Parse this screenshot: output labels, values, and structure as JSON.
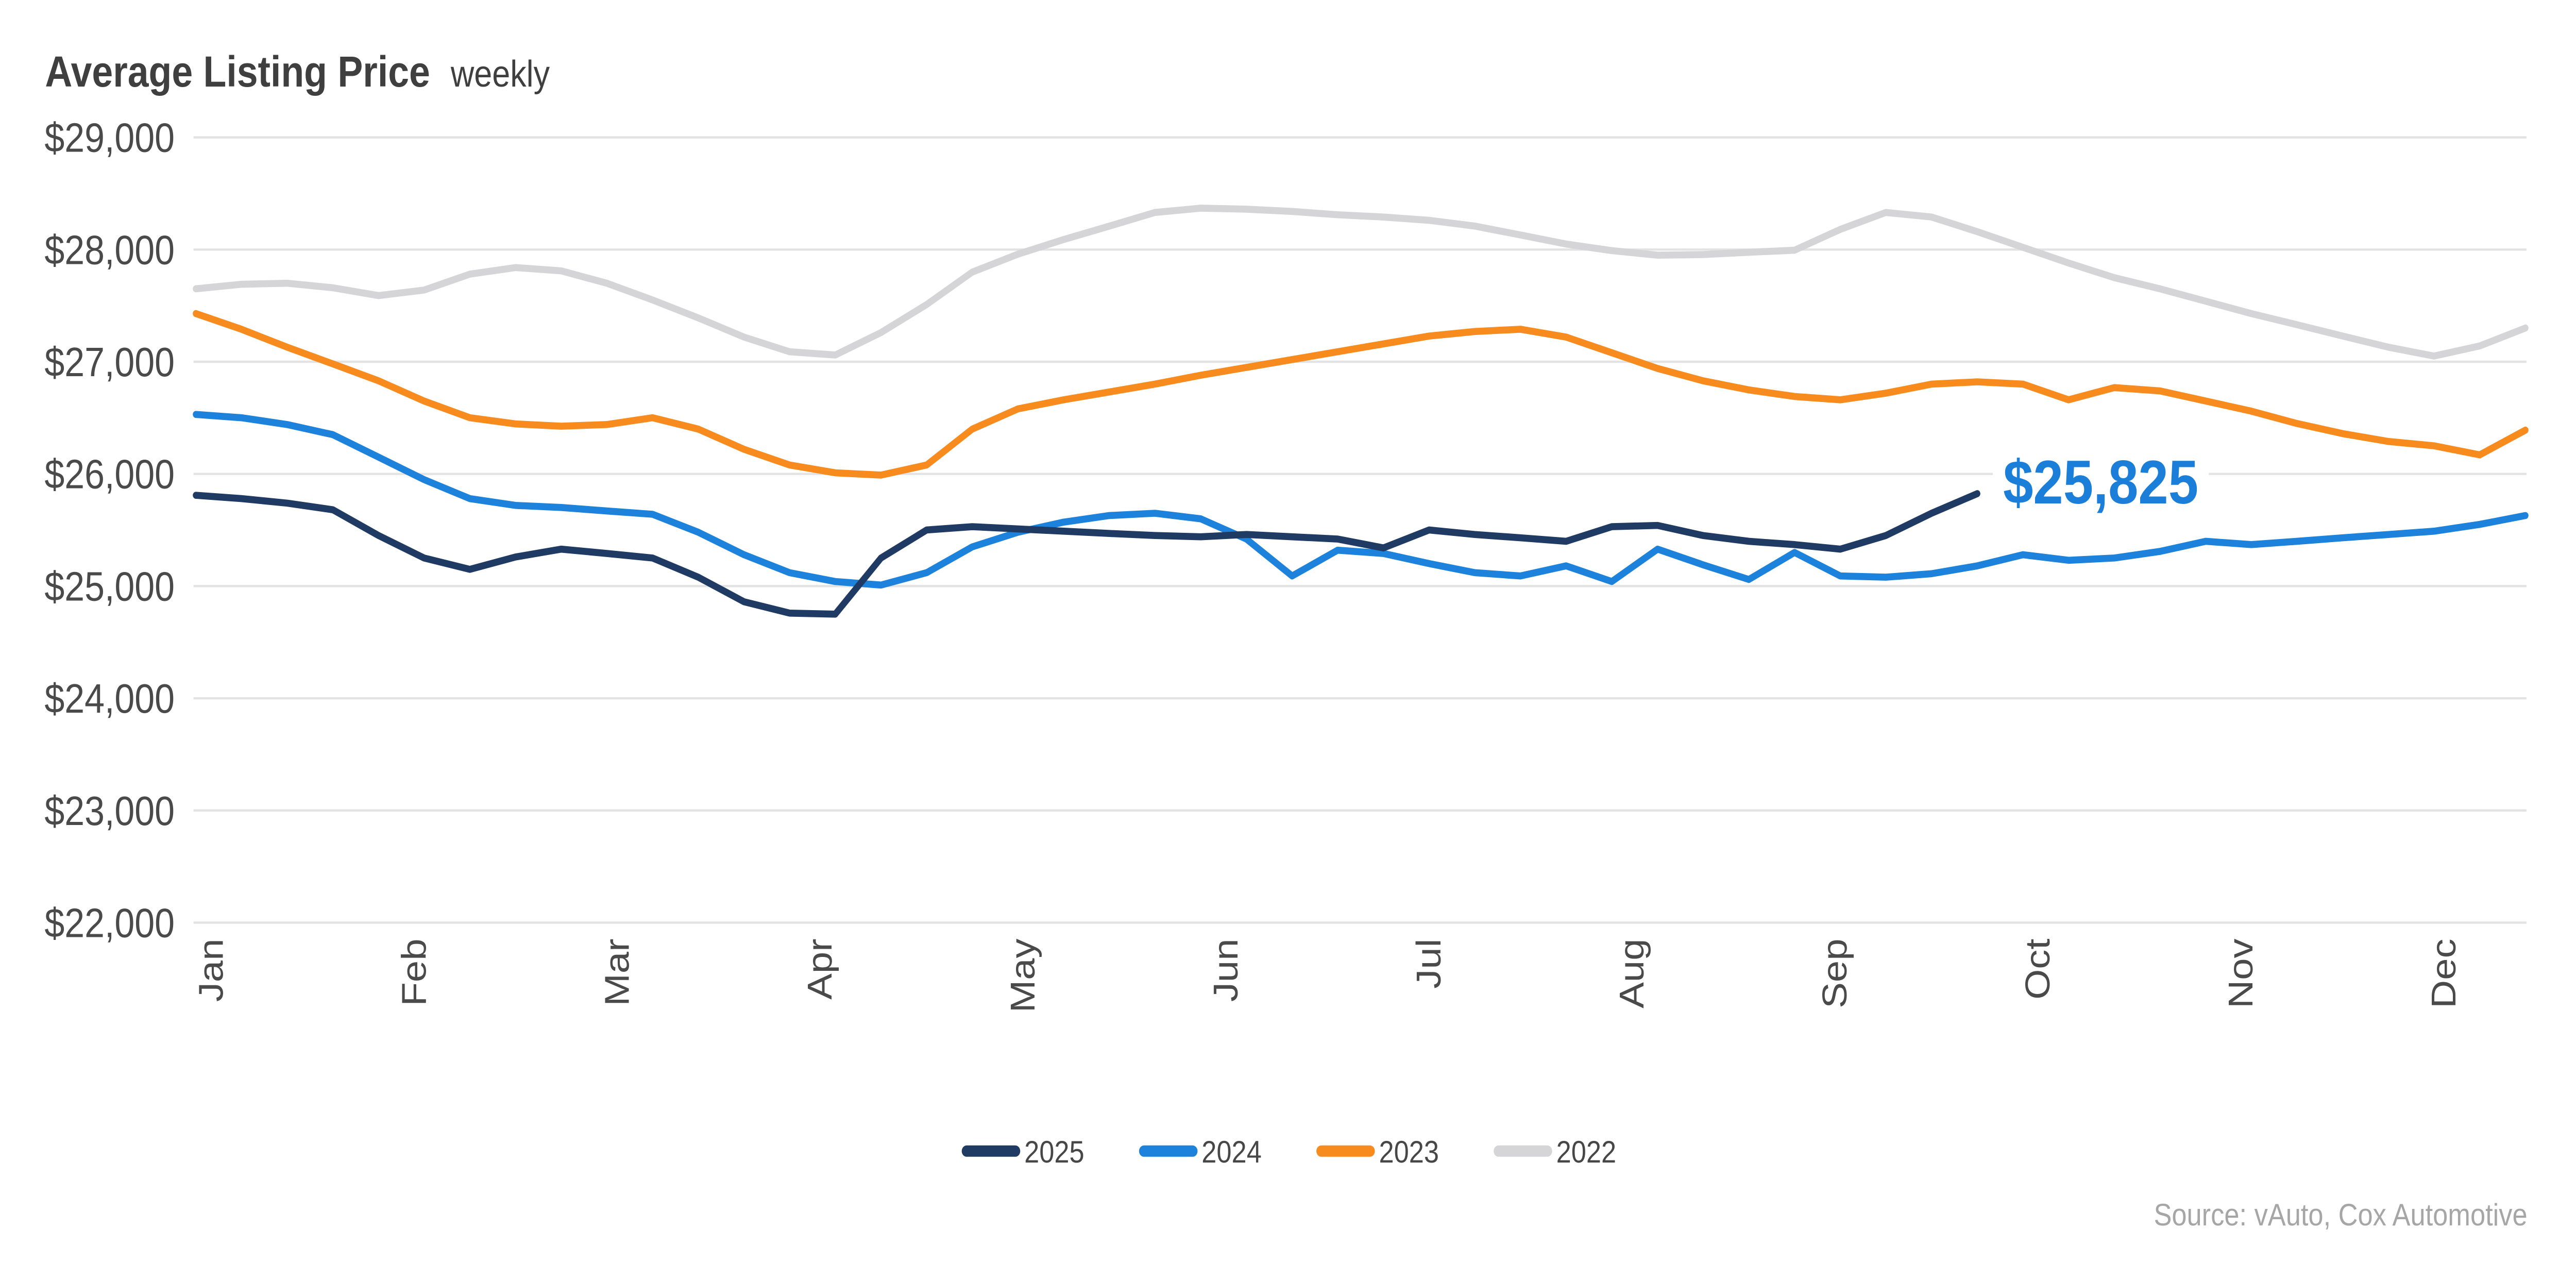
{
  "title": {
    "main": "Average Listing Price",
    "subtitle": "weekly"
  },
  "source": "Source: vAuto, Cox Automotive",
  "annotation": {
    "text": "$25,825",
    "series": "2025",
    "color": "#1b7ed9",
    "week": 40,
    "value": 25825
  },
  "chart_data": {
    "type": "line",
    "title": "Average Listing Price weekly",
    "xlabel": "",
    "ylabel": "",
    "x_unit": "week-of-year",
    "weeks_per_year": 52,
    "x_tick_labels": [
      "Jan",
      "Feb",
      "Mar",
      "Apr",
      "May",
      "Jun",
      "Jul",
      "Aug",
      "Sep",
      "Oct",
      "Nov",
      "Dec"
    ],
    "y_axis": {
      "min": 22000,
      "max": 29000,
      "step": 1000,
      "tick_labels": [
        "$29,000",
        "$28,000",
        "$27,000",
        "$26,000",
        "$25,000",
        "$24,000",
        "$23,000",
        "$22,000"
      ]
    },
    "grid": true,
    "legend_position": "bottom-center",
    "series": [
      {
        "name": "2025",
        "color": "#1f3a63",
        "values": [
          25810,
          25780,
          25740,
          25680,
          25450,
          25250,
          25150,
          25260,
          25330,
          25290,
          25250,
          25080,
          24860,
          24760,
          24750,
          25250,
          25500,
          25530,
          25510,
          25490,
          25470,
          25450,
          25440,
          25460,
          25440,
          25420,
          25340,
          25500,
          25460,
          25430,
          25400,
          25530,
          25540,
          25450,
          25400,
          25370,
          25330,
          25450,
          25650,
          25825
        ]
      },
      {
        "name": "2024",
        "color": "#1c82db",
        "values": [
          26530,
          26500,
          26440,
          26350,
          26150,
          25950,
          25780,
          25720,
          25700,
          25670,
          25640,
          25480,
          25280,
          25120,
          25040,
          25010,
          25120,
          25350,
          25480,
          25570,
          25630,
          25650,
          25600,
          25420,
          25090,
          25320,
          25290,
          25200,
          25120,
          25090,
          25180,
          25040,
          25330,
          25190,
          25060,
          25300,
          25090,
          25080,
          25110,
          25180,
          25280,
          25230,
          25250,
          25310,
          25400,
          25370,
          25400,
          25430,
          25460,
          25490,
          25550,
          25630
        ]
      },
      {
        "name": "2023",
        "color": "#f78b1e",
        "values": [
          27430,
          27290,
          27130,
          26980,
          26830,
          26650,
          26500,
          26445,
          26425,
          26440,
          26500,
          26400,
          26220,
          26080,
          26010,
          25990,
          26080,
          26400,
          26580,
          26660,
          26730,
          26800,
          26880,
          26950,
          27020,
          27090,
          27160,
          27230,
          27270,
          27290,
          27220,
          27080,
          26940,
          26830,
          26750,
          26690,
          26660,
          26720,
          26800,
          26820,
          26800,
          26660,
          26770,
          26740,
          26650,
          26560,
          26450,
          26360,
          26290,
          26250,
          26170,
          26390
        ]
      },
      {
        "name": "2022",
        "color": "#d5d5d7",
        "values": [
          27650,
          27690,
          27700,
          27660,
          27590,
          27640,
          27780,
          27840,
          27810,
          27700,
          27550,
          27390,
          27220,
          27090,
          27060,
          27260,
          27510,
          27800,
          27960,
          28090,
          28210,
          28330,
          28370,
          28360,
          28340,
          28310,
          28290,
          28260,
          28210,
          28130,
          28050,
          27990,
          27950,
          27955,
          27975,
          27995,
          28180,
          28330,
          28290,
          28160,
          28020,
          27880,
          27750,
          27650,
          27540,
          27430,
          27330,
          27230,
          27130,
          27050,
          27140,
          27300
        ]
      }
    ]
  }
}
